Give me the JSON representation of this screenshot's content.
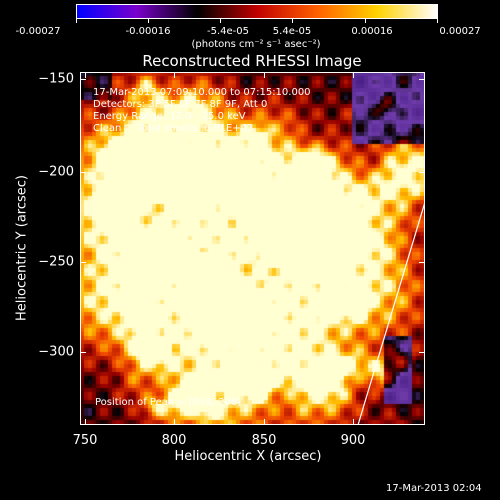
{
  "colorbar": {
    "tick_labels": [
      "-0.00027",
      "-0.00016",
      "-5.4e-05",
      "5.4e-05",
      "0.00016",
      "0.00027"
    ],
    "units": "(photons cm⁻² s⁻¹ asec⁻²)",
    "colors": [
      "#0000ff",
      "#7a00cc",
      "#000000",
      "#c00000",
      "#ff6000",
      "#ffd200",
      "#ffffff"
    ]
  },
  "plot": {
    "title": "Reconstructed RHESSI Image",
    "xlabel": "Heliocentric X (arcsec)",
    "ylabel": "Heliocentric Y (arcsec)",
    "x_ticks": [
      "750",
      "800",
      "850",
      "900"
    ],
    "y_ticks": [
      "−150",
      "−200",
      "−250",
      "−300"
    ],
    "info_lines": [
      "17-Mar-2013 07:09:10.000 to 07:15:10.000",
      "Detectors: 3F 5F 6F 7F 8F 9F, Att 0",
      "Energy Range: 12.0 - 25.0 keV",
      "Clean     Total counts: 6.91E+03"
    ],
    "peak_text": "Position of Peak = [934,-206]",
    "footer_timestamp": "17-Mar-2013 02:04"
  }
}
